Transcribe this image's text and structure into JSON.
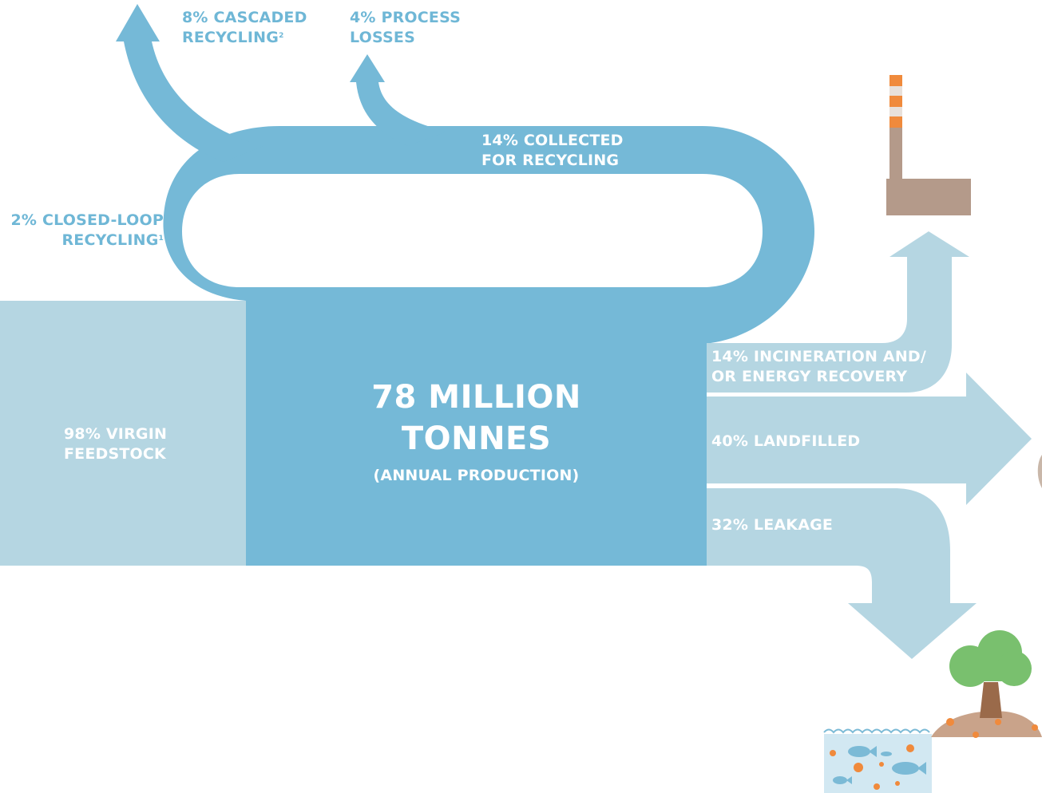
{
  "colors": {
    "main_flow": "#75b9d7",
    "light_flow": "#b5d6e2",
    "label_blue": "#6fb7d6",
    "chimney": "#b49a8a",
    "chimney_stripe": "#f08a3c",
    "tree": "#79c06e",
    "trunk": "#9a6a4a",
    "water": "#d2e8f2"
  },
  "flows": {
    "cascaded": {
      "line1": "8% CASCADED",
      "line2": "RECYCLING",
      "sup": "2"
    },
    "process_losses": {
      "line1": "4% PROCESS",
      "line2": "LOSSES"
    },
    "collected": {
      "line1": "14% COLLECTED",
      "line2": "FOR RECYCLING"
    },
    "closed_loop": {
      "line1": "2% CLOSED-LOOP",
      "line2": "RECYCLING",
      "sup": "1"
    },
    "virgin": {
      "line1": "98% VIRGIN",
      "line2": "FEEDSTOCK"
    },
    "incineration": {
      "line1": "14% INCINERATION AND/",
      "line2": "OR ENERGY RECOVERY"
    },
    "landfilled": {
      "line1": "40% LANDFILLED"
    },
    "leakage": {
      "line1": "32% LEAKAGE"
    }
  },
  "center": {
    "line1": "78 MILLION",
    "line2": "TONNES",
    "line3": "(ANNUAL PRODUCTION)"
  },
  "icons": [
    "factory-chimney-icon",
    "landfill-icon",
    "ocean-fish-icon",
    "tree-icon"
  ]
}
